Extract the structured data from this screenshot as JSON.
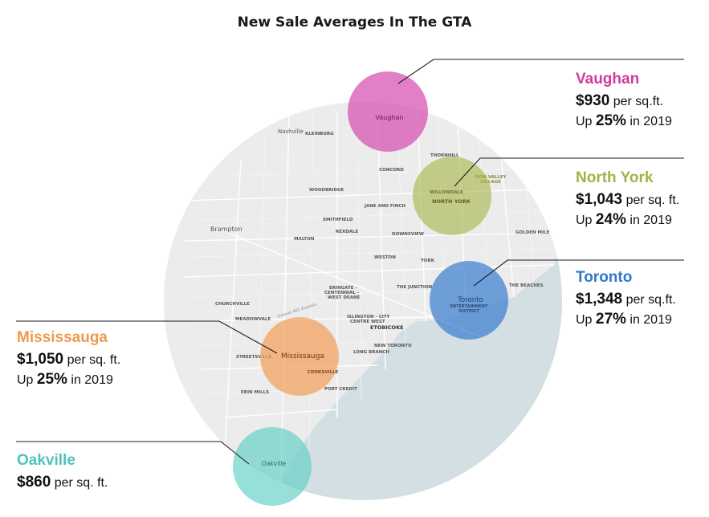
{
  "title": "New Sale Averages In The GTA",
  "colors": {
    "vaughan": "#d64fb0",
    "north_york": "#a8b54a",
    "toronto": "#3d7fd0",
    "mississauga": "#f2a05a",
    "oakville": "#5fcfc6"
  },
  "map_labels": {
    "nashville": "Nashville",
    "kleinburg": "KLEINBURG",
    "thornhill": "THORNHILL",
    "concord": "CONCORD",
    "woodbridge": "WOODBRIDGE",
    "jane_finch": "JANE AND FINCH",
    "don_valley": "DON VALLEY",
    "village": "VILLAGE",
    "willowdale": "WILLOWDALE",
    "brampton": "Brampton",
    "smithfield": "SMITHFIELD",
    "rexdale": "REXDALE",
    "downsview": "DOWNSVIEW",
    "malton": "MALTON",
    "golden_mile": "GOLDEN MILE",
    "weston": "WESTON",
    "york": "YORK",
    "the_junction": "THE JUNCTION",
    "the_beaches": "THE BEACHES",
    "eringate_1": "ERINGATE -",
    "eringate_2": "CENTENNIAL -",
    "eringate_3": "WEST DEANE",
    "churchville": "CHURCHVILLE",
    "meadowvale": "MEADOWVALE",
    "islington_1": "ISLINGTON - CITY",
    "islington_2": "CENTRE WEST",
    "etobicoke": "ETOBICOKE",
    "new_toronto": "NEW TORONTO",
    "long_branch": "LONG BRANCH",
    "streetsville": "STREETSVILLE",
    "cooksville": "COOKSVILLE",
    "port_credit": "PORT CREDIT",
    "erin_mills": "ERIN MILLS",
    "entertainment": "ENTERTAINMENT",
    "district": "DISTRICT",
    "r401": "Ontario 401 Express"
  },
  "bubbles": {
    "vaughan": "Vaughan",
    "north_york": "NORTH YORK",
    "toronto": "Toronto",
    "mississauga": "Mississauga",
    "oakville": "Oakville"
  },
  "callouts": {
    "vaughan": {
      "name": "Vaughan",
      "price": "$930",
      "price_unit": " per sq.ft.",
      "up_prefix": "Up ",
      "pct": "25%",
      "up_suffix": " in 2019"
    },
    "north_york": {
      "name": "North York",
      "price": "$1,043",
      "price_unit": " per sq. ft.",
      "up_prefix": "Up ",
      "pct": "24%",
      "up_suffix": " in 2019"
    },
    "toronto": {
      "name": "Toronto",
      "price": "$1,348",
      "price_unit": " per sq.ft.",
      "up_prefix": "Up ",
      "pct": "27%",
      "up_suffix": " in 2019"
    },
    "mississauga": {
      "name": "Mississauga",
      "price": "$1,050",
      "price_unit": " per sq. ft.",
      "up_prefix": "Up ",
      "pct": "25%",
      "up_suffix": " in 2019"
    },
    "oakville": {
      "name": "Oakville",
      "price": "$860",
      "price_unit": " per sq. ft."
    }
  }
}
